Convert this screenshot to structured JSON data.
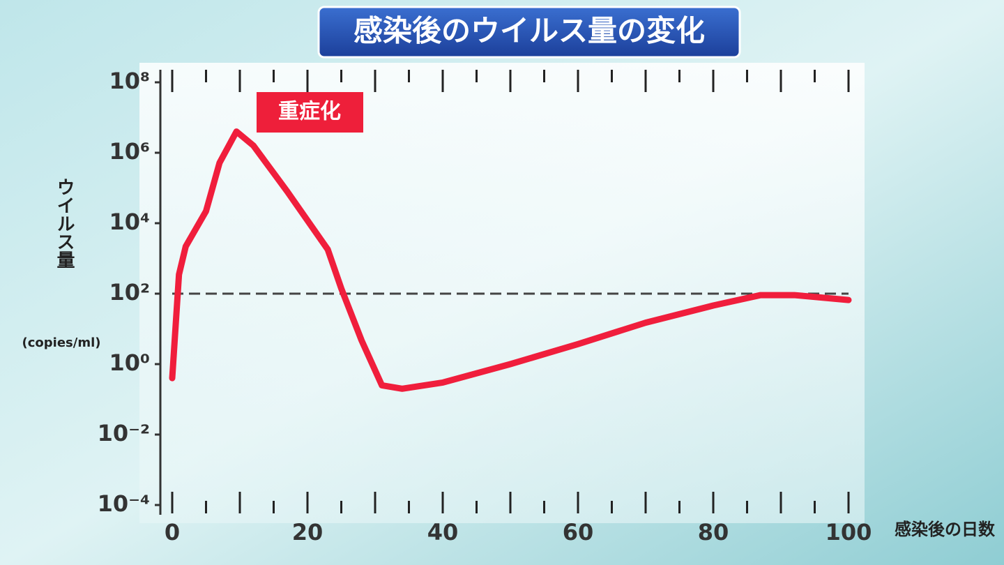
{
  "chart_data": {
    "type": "line",
    "title": "感染後のウイルス量の変化",
    "y_label": "ウイルス量",
    "y_unit": "(copies/ml)",
    "x_label": "感染後の日数",
    "annotation": "重症化",
    "x": [
      0,
      1,
      2,
      5,
      7,
      9.5,
      12,
      17,
      23,
      25,
      28,
      31,
      34,
      40,
      50,
      60,
      70,
      80,
      87,
      92,
      100
    ],
    "series": [
      {
        "name": "ウイルス量",
        "color": "#f01e3c",
        "values": [
          0.4,
          350,
          2200,
          22000,
          520000,
          4000000,
          1600000,
          80000,
          1800,
          140,
          4.7,
          0.25,
          0.2,
          0.3,
          1,
          3.7,
          15,
          46,
          91,
          91,
          66
        ]
      }
    ],
    "xlim": [
      0,
      100
    ],
    "xticks": [
      0,
      20,
      40,
      60,
      80,
      100
    ],
    "xminorticks": [
      0,
      5,
      10,
      15,
      20,
      25,
      30,
      35,
      40,
      45,
      50,
      55,
      60,
      65,
      70,
      75,
      80,
      85,
      90,
      95,
      100
    ],
    "ylim": [
      0.0001,
      100000000
    ],
    "yscale": "log",
    "yticks": [
      {
        "value": 0.0001,
        "label": "10⁻⁴"
      },
      {
        "value": 0.01,
        "label": "10⁻²"
      },
      {
        "value": 1,
        "label": "10⁰"
      },
      {
        "value": 100,
        "label": "10²"
      },
      {
        "value": 10000,
        "label": "10⁴"
      },
      {
        "value": 1000000,
        "label": "10⁶"
      },
      {
        "value": 100000000,
        "label": "10⁸"
      }
    ],
    "hline": 100,
    "grid": false
  }
}
